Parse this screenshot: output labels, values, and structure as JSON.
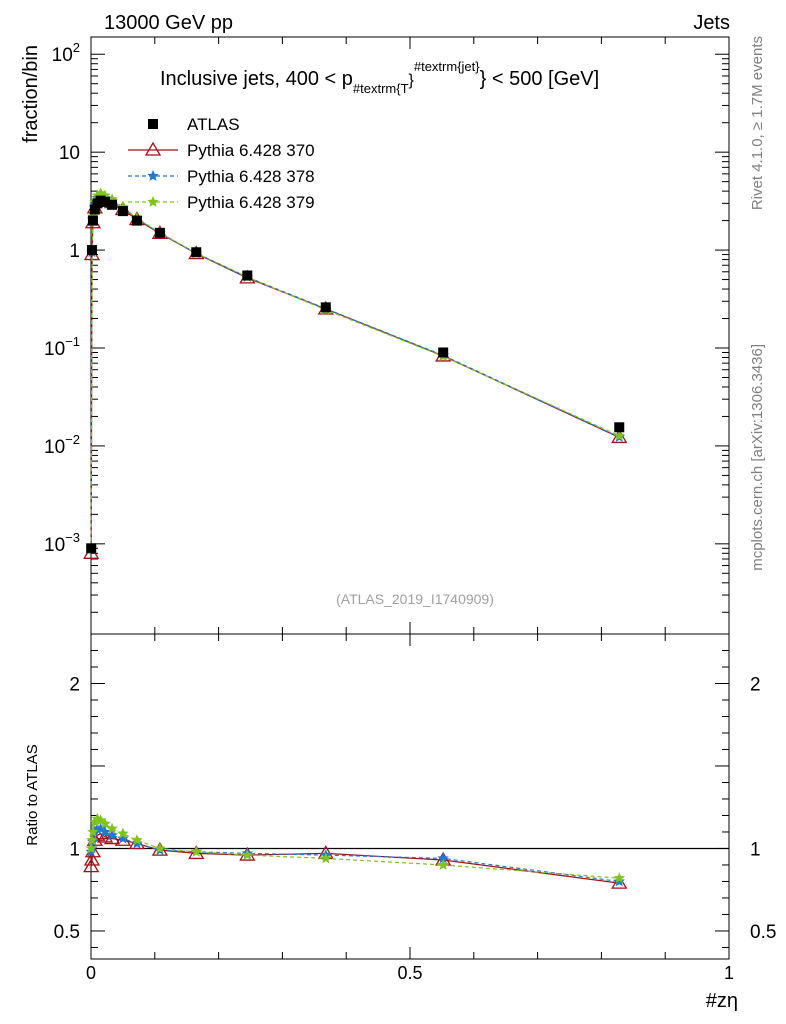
{
  "header": {
    "left": "13000 GeV pp",
    "right": "Jets"
  },
  "side_labels": {
    "rivet": "Rivet 4.1.0, ≥ 1.7M events",
    "mcplots": "mcplots.cern.ch [arXiv:1306.3436]"
  },
  "chart_data": {
    "type": "line",
    "title_parts": {
      "pre": "Inclusive jets, 400 < p",
      "sub": "#textrm{T",
      "post_brace": "}",
      "sup": "#textrm{jet}",
      "post": "} < 500 [GeV]"
    },
    "watermark": "(ATLAS_2019_I1740909)",
    "xlabel": "#zη",
    "ylabel_main": "fraction/bin",
    "ylabel_ratio": "Ratio to ATLAS",
    "xlim": [
      0,
      1
    ],
    "ylim_main": [
      0.00012,
      150
    ],
    "ylim_ratio": [
      0.33,
      2.3
    ],
    "xticks": [
      {
        "v": 0,
        "label": "0"
      },
      {
        "v": 0.5,
        "label": "0.5"
      },
      {
        "v": 1,
        "label": "1"
      }
    ],
    "yticks_main": [
      {
        "v": 0.001,
        "base": "10",
        "exp": "−3"
      },
      {
        "v": 0.01,
        "base": "10",
        "exp": "−2"
      },
      {
        "v": 0.1,
        "base": "10",
        "exp": "−1"
      },
      {
        "v": 1,
        "base": "1",
        "exp": ""
      },
      {
        "v": 10,
        "base": "10",
        "exp": ""
      },
      {
        "v": 100,
        "base": "10",
        "exp": "2"
      }
    ],
    "yticks_ratio": [
      {
        "v": 0.5,
        "label": "0.5"
      },
      {
        "v": 1,
        "label": "1"
      },
      {
        "v": 2,
        "label": "2"
      }
    ],
    "x": [
      0.0003,
      0.0015,
      0.003,
      0.006,
      0.01,
      0.015,
      0.022,
      0.033,
      0.05,
      0.072,
      0.108,
      0.165,
      0.245,
      0.368,
      0.552,
      0.828
    ],
    "series": [
      {
        "name": "ATLAS",
        "color": "#000000",
        "marker": "square",
        "values": [
          0.0009,
          1.0,
          2.0,
          2.6,
          3.0,
          3.2,
          3.1,
          2.9,
          2.5,
          2.0,
          1.5,
          0.95,
          0.55,
          0.26,
          0.09,
          0.0155
        ],
        "ratio": [
          1,
          1,
          1,
          1,
          1,
          1,
          1,
          1,
          1,
          1,
          1,
          1,
          1,
          1,
          1,
          1
        ]
      },
      {
        "name": "Pythia 6.428 370",
        "color": "#a50f15",
        "marker": "triangle-open",
        "dash": "",
        "values": [
          0.0008,
          0.9,
          1.9,
          2.7,
          3.2,
          3.45,
          3.3,
          3.05,
          2.6,
          2.05,
          1.48,
          0.92,
          0.52,
          0.25,
          0.083,
          0.0122
        ],
        "ratio": [
          0.89,
          0.93,
          0.98,
          1.05,
          1.08,
          1.09,
          1.07,
          1.06,
          1.05,
          1.03,
          0.99,
          0.97,
          0.96,
          0.97,
          0.93,
          0.79
        ]
      },
      {
        "name": "Pythia 6.428 378",
        "color": "#1f78d4",
        "marker": "star",
        "dash": "4,3",
        "values": [
          0.0009,
          0.95,
          2.05,
          2.9,
          3.4,
          3.6,
          3.4,
          3.15,
          2.65,
          2.08,
          1.49,
          0.93,
          0.53,
          0.252,
          0.084,
          0.0123
        ],
        "ratio": [
          0.98,
          1.0,
          1.04,
          1.1,
          1.12,
          1.12,
          1.1,
          1.08,
          1.06,
          1.03,
          0.99,
          0.98,
          0.97,
          0.96,
          0.94,
          0.8
        ]
      },
      {
        "name": "Pythia 6.428 379",
        "color": "#7fc31f",
        "marker": "star",
        "dash": "4,3",
        "values": [
          0.0009,
          1.0,
          2.2,
          3.1,
          3.6,
          3.8,
          3.6,
          3.3,
          2.75,
          2.12,
          1.5,
          0.93,
          0.53,
          0.245,
          0.082,
          0.0127
        ],
        "ratio": [
          1.0,
          1.05,
          1.1,
          1.16,
          1.18,
          1.17,
          1.15,
          1.12,
          1.09,
          1.05,
          1.0,
          0.98,
          0.96,
          0.94,
          0.9,
          0.82
        ]
      }
    ]
  }
}
